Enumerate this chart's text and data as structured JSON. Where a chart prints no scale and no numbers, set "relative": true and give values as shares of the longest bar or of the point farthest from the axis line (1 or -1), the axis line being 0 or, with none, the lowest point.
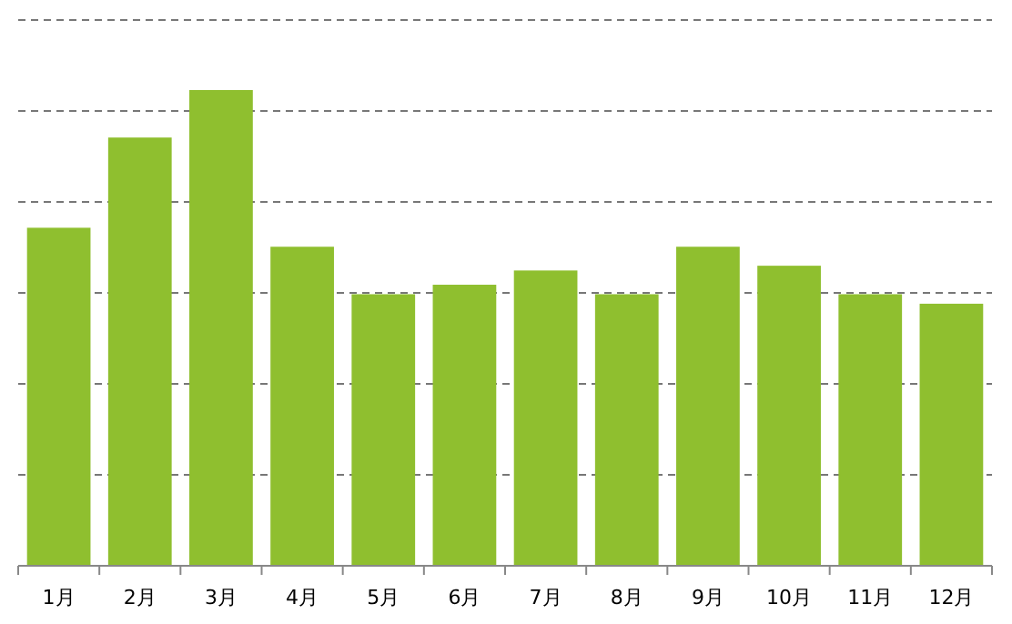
{
  "chart_data": {
    "type": "bar",
    "relative": true,
    "grid": "y",
    "categories": [
      "1月",
      "2月",
      "3月",
      "4月",
      "5月",
      "6月",
      "7月",
      "8月",
      "9月",
      "10月",
      "11月",
      "12月"
    ],
    "series": [
      {
        "color": "#8fbf2f",
        "values": [
          0.71,
          0.9,
          1,
          0.67,
          0.57,
          0.59,
          0.62,
          0.57,
          0.67,
          0.63,
          0.57,
          0.55
        ]
      }
    ]
  }
}
